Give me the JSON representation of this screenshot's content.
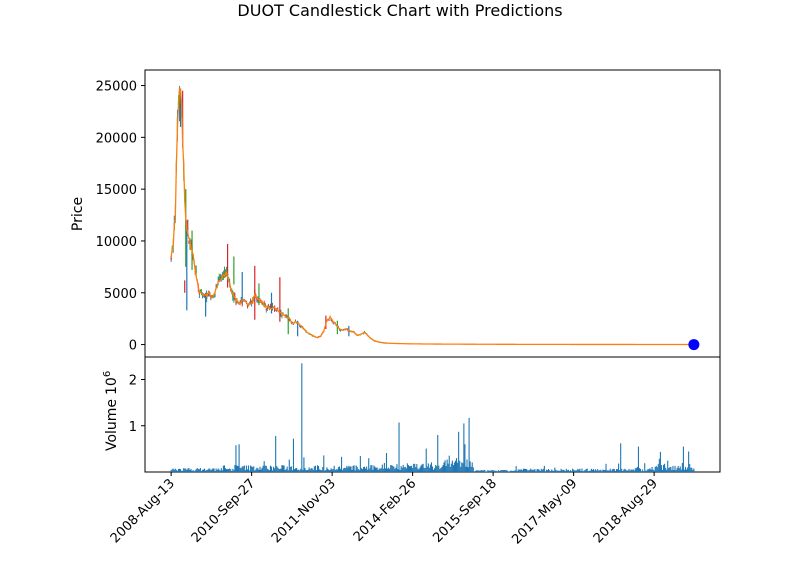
{
  "chart_data": {
    "type": "candlestick",
    "title": "DUOT Candlestick Chart with Predictions",
    "colors": {
      "up": "#2ca02c",
      "down": "#d62728",
      "wick": "#1f77b4",
      "prediction": "#ff7f0e",
      "marker": "#0000ff",
      "volume": "#1f77b4"
    },
    "price_panel": {
      "ylabel": "Price",
      "ylim": [
        -1200,
        26500
      ],
      "yticks": [
        0,
        5000,
        10000,
        15000,
        20000,
        25000
      ],
      "ytick_labels": [
        "0",
        "5000",
        "10000",
        "15000",
        "20000",
        "25000"
      ],
      "trend": [
        [
          0,
          8300
        ],
        [
          2,
          9800
        ],
        [
          4,
          12500
        ],
        [
          5,
          17000
        ],
        [
          6,
          21000
        ],
        [
          7,
          23500
        ],
        [
          8,
          24700
        ],
        [
          9,
          24500
        ],
        [
          10,
          23000
        ],
        [
          11,
          20000
        ],
        [
          12,
          17000
        ],
        [
          13,
          14000
        ],
        [
          14,
          12000
        ],
        [
          15,
          11000
        ],
        [
          17,
          10200
        ],
        [
          19,
          9500
        ],
        [
          21,
          8500
        ],
        [
          23,
          7200
        ],
        [
          25,
          6000
        ],
        [
          27,
          5100
        ],
        [
          30,
          4800
        ],
        [
          33,
          4700
        ],
        [
          36,
          4900
        ],
        [
          39,
          4600
        ],
        [
          42,
          5000
        ],
        [
          45,
          6000
        ],
        [
          48,
          6500
        ],
        [
          51,
          6800
        ],
        [
          53,
          7000
        ],
        [
          55,
          6200
        ],
        [
          57,
          5500
        ],
        [
          60,
          4600
        ],
        [
          63,
          4200
        ],
        [
          66,
          4000
        ],
        [
          70,
          4300
        ],
        [
          74,
          3800
        ],
        [
          78,
          4100
        ],
        [
          80,
          4900
        ],
        [
          82,
          4400
        ],
        [
          86,
          4200
        ],
        [
          90,
          3700
        ],
        [
          94,
          3500
        ],
        [
          98,
          3600
        ],
        [
          102,
          3300
        ],
        [
          106,
          3000
        ],
        [
          110,
          2700
        ],
        [
          113,
          2500
        ],
        [
          116,
          2000
        ],
        [
          119,
          2200
        ],
        [
          123,
          1900
        ],
        [
          127,
          1500
        ],
        [
          131,
          1100
        ],
        [
          135,
          900
        ],
        [
          139,
          700
        ],
        [
          143,
          800
        ],
        [
          146,
          1300
        ],
        [
          149,
          2300
        ],
        [
          152,
          2600
        ],
        [
          155,
          2200
        ],
        [
          158,
          1900
        ],
        [
          161,
          1500
        ],
        [
          165,
          1400
        ],
        [
          168,
          1500
        ],
        [
          171,
          1300
        ],
        [
          175,
          1200
        ],
        [
          178,
          900
        ],
        [
          182,
          1000
        ],
        [
          185,
          1200
        ],
        [
          188,
          900
        ],
        [
          191,
          600
        ],
        [
          194,
          400
        ],
        [
          197,
          300
        ],
        [
          200,
          220
        ],
        [
          205,
          160
        ],
        [
          210,
          120
        ],
        [
          220,
          90
        ],
        [
          230,
          70
        ],
        [
          240,
          60
        ],
        [
          260,
          45
        ],
        [
          280,
          38
        ],
        [
          300,
          30
        ],
        [
          320,
          25
        ],
        [
          340,
          20
        ],
        [
          360,
          18
        ],
        [
          380,
          15
        ],
        [
          400,
          13
        ],
        [
          420,
          12
        ],
        [
          440,
          10
        ],
        [
          460,
          9
        ],
        [
          480,
          8
        ],
        [
          500,
          7
        ]
      ],
      "candle_spikes": [
        {
          "x": 9,
          "high": 24700,
          "low": 21000
        },
        {
          "x": 11,
          "high": 24500,
          "low": 19000
        },
        {
          "x": 14,
          "high": 15000,
          "low": 7500
        },
        {
          "x": 15,
          "high": 12000,
          "low": 3300
        },
        {
          "x": 13,
          "high": 6200,
          "low": 5000
        },
        {
          "x": 20,
          "high": 11000,
          "low": 7200
        },
        {
          "x": 33,
          "high": 5000,
          "low": 2700
        },
        {
          "x": 54,
          "high": 9700,
          "low": 5500
        },
        {
          "x": 60,
          "high": 8500,
          "low": 5800
        },
        {
          "x": 68,
          "high": 7000,
          "low": 4000
        },
        {
          "x": 80,
          "high": 7600,
          "low": 2400
        },
        {
          "x": 84,
          "high": 5900,
          "low": 3800
        },
        {
          "x": 96,
          "high": 5000,
          "low": 3000
        },
        {
          "x": 104,
          "high": 6500,
          "low": 2200
        },
        {
          "x": 112,
          "high": 3500,
          "low": 1000
        },
        {
          "x": 121,
          "high": 2300,
          "low": 800
        },
        {
          "x": 148,
          "high": 2800,
          "low": 1500
        },
        {
          "x": 159,
          "high": 2300,
          "low": 1000
        },
        {
          "x": 170,
          "high": 1800,
          "low": 800
        }
      ],
      "prediction_marker": {
        "x": 500,
        "y": 0
      }
    },
    "volume_panel": {
      "ylabel": "Volume",
      "scale_label": "10",
      "scale_exponent": "6",
      "ylim": [
        0,
        2.4
      ],
      "yticks": [
        1,
        2
      ],
      "ytick_labels": [
        "1",
        "2"
      ],
      "spikes": [
        {
          "x": 62,
          "v": 0.58
        },
        {
          "x": 65,
          "v": 0.6
        },
        {
          "x": 100,
          "v": 0.78
        },
        {
          "x": 117,
          "v": 0.72
        },
        {
          "x": 125,
          "v": 2.35
        },
        {
          "x": 218,
          "v": 1.07
        },
        {
          "x": 255,
          "v": 0.8
        },
        {
          "x": 275,
          "v": 0.87
        },
        {
          "x": 280,
          "v": 1.05
        },
        {
          "x": 285,
          "v": 1.17
        },
        {
          "x": 281,
          "v": 0.6
        },
        {
          "x": 430,
          "v": 0.62
        },
        {
          "x": 447,
          "v": 0.55
        },
        {
          "x": 490,
          "v": 0.55
        }
      ]
    },
    "xlim": [
      -25,
      525
    ],
    "x_ticks": [
      0,
      77,
      154,
      231,
      308,
      385,
      462
    ],
    "x_tick_labels": [
      "2008-Aug-13",
      "2010-Sep-27",
      "2011-Nov-03",
      "2014-Feb-26",
      "2015-Sep-18",
      "2017-May-09",
      "2018-Aug-29"
    ]
  }
}
